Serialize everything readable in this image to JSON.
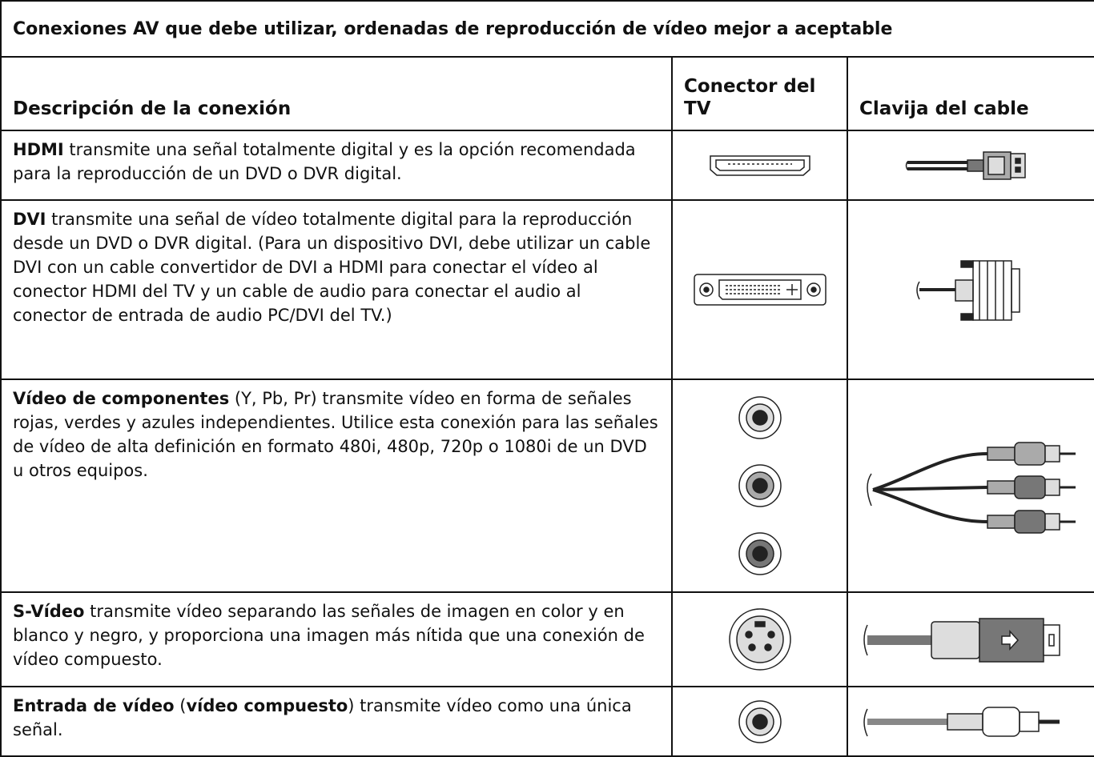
{
  "table": {
    "title": "Conexiones AV que debe utilizar, ordenadas de reproducción de vídeo mejor a aceptable",
    "headers": [
      "Descripción de la conexión",
      "Conector del TV",
      "Clavija del cable"
    ],
    "rows": [
      {
        "parts": [
          {
            "text": "HDMI",
            "bold": true
          },
          {
            "text": " transmite una señal totalmente digital y es la opción recomendada para la reproducción de un DVD o DVR digital.",
            "bold": false
          }
        ]
      },
      {
        "parts": [
          {
            "text": "DVI",
            "bold": true
          },
          {
            "text": " transmite una señal de vídeo totalmente digital para la reproducción desde un DVD o DVR digital. (Para un dispositivo DVI, debe utilizar un cable DVI con un cable convertidor de DVI a HDMI para conectar el vídeo al conector HDMI del TV y un cable de audio para conectar el audio al conector de entrada de audio PC/DVI del TV.)",
            "bold": false
          }
        ]
      },
      {
        "parts": [
          {
            "text": "Vídeo de componentes",
            "bold": true
          },
          {
            "text": " (Y, Pb, Pr) transmite vídeo en forma de señales rojas, verdes y azules independientes. Utilice esta conexión para las señales de vídeo de alta definición en formato 480i, 480p, 720p o 1080i de un DVD u otros equipos.",
            "bold": false
          }
        ]
      },
      {
        "parts": [
          {
            "text": "S-Vídeo",
            "bold": true
          },
          {
            "text": " transmite vídeo separando las señales de imagen en color y en blanco y negro, y proporciona una imagen más nítida que una conexión de vídeo compuesto.",
            "bold": false
          }
        ]
      },
      {
        "parts": [
          {
            "text": "Entrada de vídeo",
            "bold": true
          },
          {
            "text": " (",
            "bold": false
          },
          {
            "text": "vídeo compuesto",
            "bold": true
          },
          {
            "text": ") transmite vídeo como una única señal.",
            "bold": false
          }
        ]
      }
    ]
  }
}
